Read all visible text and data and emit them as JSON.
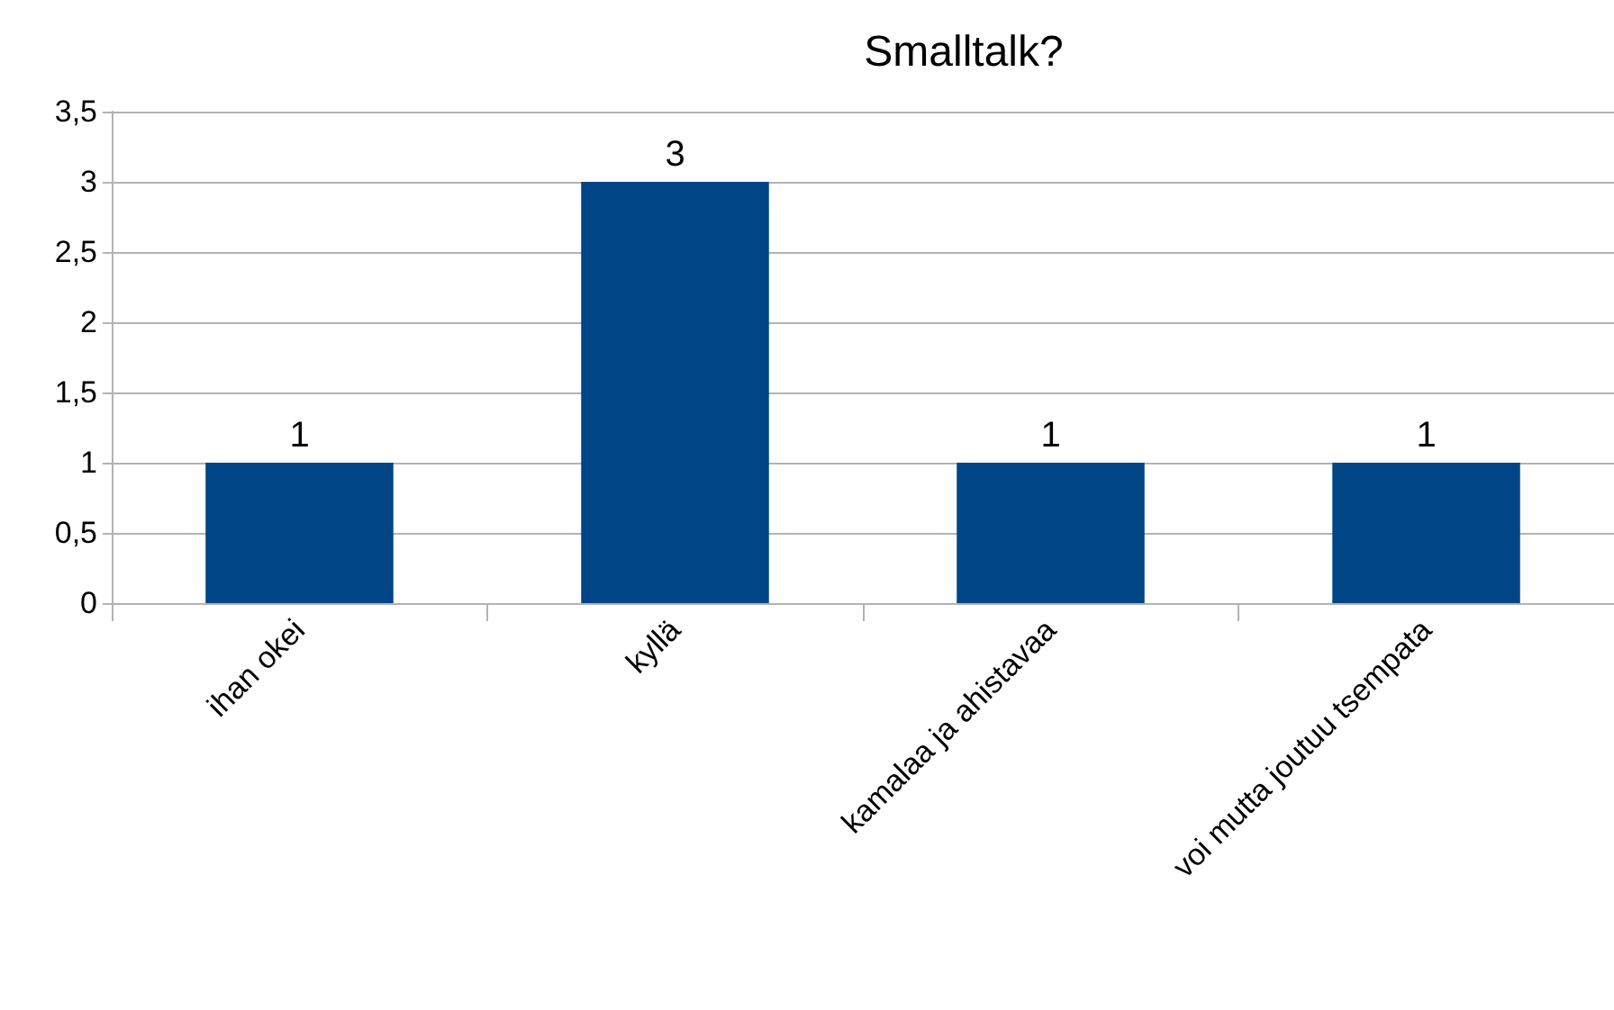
{
  "chart_data": {
    "type": "bar",
    "title": "Smalltalk?",
    "categories": [
      "ihan okei",
      "kyllä",
      "kamalaa ja ahistavaa",
      "voi mutta joutuu tsempata"
    ],
    "values": [
      1,
      3,
      1,
      1
    ],
    "color": "#004586",
    "data_labels": true,
    "grid": "y",
    "ylim": [
      0,
      3.5
    ],
    "yticks": [
      0,
      {
        "value": 0.5,
        "label": "0,5"
      },
      1,
      {
        "value": 1.5,
        "label": "1,5"
      },
      2,
      {
        "value": 2.5,
        "label": "2,5"
      },
      3,
      {
        "value": 3.5,
        "label": "3,5"
      }
    ]
  }
}
